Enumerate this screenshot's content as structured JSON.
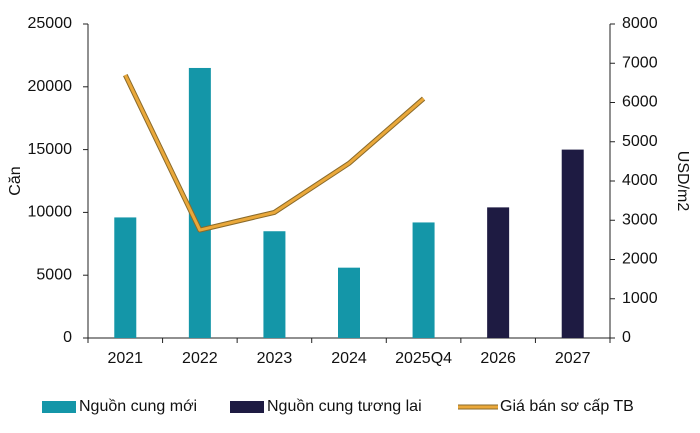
{
  "chart_data": {
    "type": "bar",
    "categories": [
      "2021",
      "2022",
      "2023",
      "2024",
      "2025Q4",
      "2026",
      "2027"
    ],
    "y_label": "Căn",
    "y2_label": "USD/m2",
    "ylim": [
      0,
      25000
    ],
    "yticks": [
      0,
      5000,
      10000,
      15000,
      20000,
      25000
    ],
    "y2lim": [
      0,
      8000
    ],
    "y2ticks": [
      0,
      1000,
      2000,
      3000,
      4000,
      5000,
      6000,
      7000,
      8000
    ],
    "series": [
      {
        "name": "Nguồn cung mới",
        "type": "bar",
        "color": "#1496a8",
        "values": [
          9600,
          21500,
          8500,
          5600,
          9200,
          null,
          null
        ]
      },
      {
        "name": "Nguồn cung tương lai",
        "type": "bar",
        "color": "#1e1b42",
        "values": [
          null,
          null,
          null,
          null,
          null,
          10400,
          15000
        ]
      },
      {
        "name": "Giá bán sơ cấp  TB",
        "type": "line",
        "axis": "y2",
        "color": "#eaa83a",
        "values": [
          6700,
          2750,
          3200,
          4450,
          6100,
          null,
          null
        ]
      }
    ]
  }
}
